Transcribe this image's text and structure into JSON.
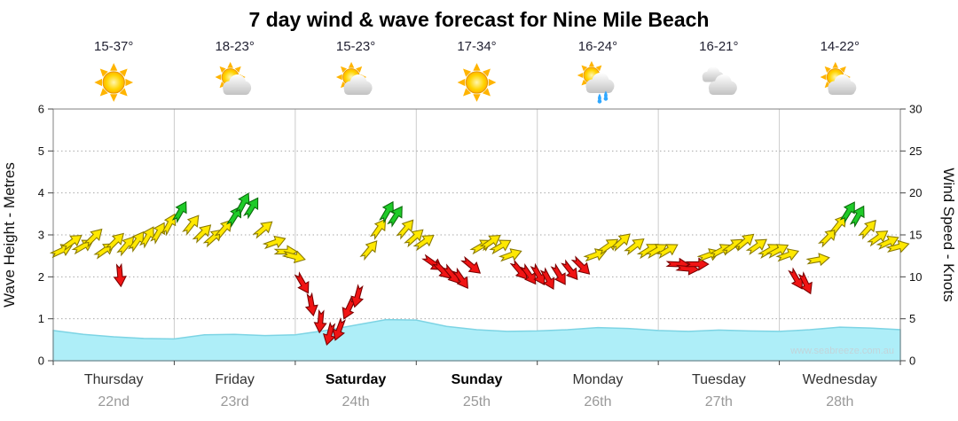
{
  "title": "7 day wind & wave forecast for Nine Mile Beach",
  "watermark": "www.seabreeze.com.au",
  "axes": {
    "left_label": "Wave Height - Metres",
    "right_label": "Wind Speed - Knots",
    "left_ticks": [
      0,
      1,
      2,
      3,
      4,
      5,
      6
    ],
    "right_ticks": [
      0,
      5,
      10,
      15,
      20,
      25,
      30
    ]
  },
  "days": [
    {
      "name": "Thursday",
      "date": "22nd",
      "temp": "15-37°",
      "icon": "sunny",
      "bold": false
    },
    {
      "name": "Friday",
      "date": "23rd",
      "temp": "18-23°",
      "icon": "partly-cloudy",
      "bold": false
    },
    {
      "name": "Saturday",
      "date": "24th",
      "temp": "15-23°",
      "icon": "partly-cloudy",
      "bold": true
    },
    {
      "name": "Sunday",
      "date": "25th",
      "temp": "17-34°",
      "icon": "sunny",
      "bold": true
    },
    {
      "name": "Monday",
      "date": "26th",
      "temp": "16-24°",
      "icon": "sun-showers",
      "bold": false
    },
    {
      "name": "Tuesday",
      "date": "27th",
      "temp": "16-21°",
      "icon": "cloudy",
      "bold": false
    },
    {
      "name": "Wednesday",
      "date": "28th",
      "temp": "14-22°",
      "icon": "partly-cloudy",
      "bold": false
    }
  ],
  "chart_data": {
    "type": "area",
    "title": "7 day wind & wave forecast for Nine Mile Beach",
    "x_axis": {
      "unit": "days",
      "range": [
        0,
        7
      ],
      "categories": [
        "Thursday",
        "Friday",
        "Saturday",
        "Sunday",
        "Monday",
        "Tuesday",
        "Wednesday"
      ]
    },
    "grid": true,
    "wave_series": {
      "name": "Wave Height",
      "unit": "m",
      "ylim": [
        0,
        6
      ],
      "points": [
        [
          0,
          0.72
        ],
        [
          0.25,
          0.63
        ],
        [
          0.5,
          0.57
        ],
        [
          0.75,
          0.53
        ],
        [
          1,
          0.52
        ],
        [
          1.25,
          0.62
        ],
        [
          1.5,
          0.63
        ],
        [
          1.75,
          0.6
        ],
        [
          2,
          0.62
        ],
        [
          2.25,
          0.72
        ],
        [
          2.5,
          0.85
        ],
        [
          2.75,
          0.98
        ],
        [
          3,
          0.97
        ],
        [
          3.25,
          0.82
        ],
        [
          3.5,
          0.74
        ],
        [
          3.75,
          0.7
        ],
        [
          4,
          0.71
        ],
        [
          4.25,
          0.74
        ],
        [
          4.5,
          0.79
        ],
        [
          4.75,
          0.77
        ],
        [
          5,
          0.72
        ],
        [
          5.25,
          0.7
        ],
        [
          5.5,
          0.73
        ],
        [
          5.75,
          0.71
        ],
        [
          6,
          0.7
        ],
        [
          6.25,
          0.74
        ],
        [
          6.5,
          0.8
        ],
        [
          6.75,
          0.78
        ],
        [
          7,
          0.74
        ]
      ]
    },
    "wind_series": {
      "name": "Wind Speed",
      "unit": "knots",
      "ylim": [
        0,
        30
      ],
      "style": "direction-arrows",
      "color_rule": {
        "red_below_kt": 12,
        "green_from_kt": 17,
        "else": "yellow"
      },
      "arrows": [
        [
          0.05,
          13,
          65
        ],
        [
          0.14,
          14,
          55
        ],
        [
          0.23,
          13.5,
          60
        ],
        [
          0.32,
          14.5,
          45
        ],
        [
          0.41,
          13,
          55
        ],
        [
          0.5,
          14,
          45
        ],
        [
          0.55,
          10.5,
          175
        ],
        [
          0.59,
          13.5,
          40
        ],
        [
          0.68,
          14,
          35
        ],
        [
          0.77,
          14.5,
          30
        ],
        [
          0.86,
          15,
          30
        ],
        [
          0.95,
          16,
          28
        ],
        [
          1.04,
          17.5,
          30
        ],
        [
          1.13,
          16,
          38
        ],
        [
          1.22,
          15,
          45
        ],
        [
          1.31,
          14.5,
          48
        ],
        [
          1.4,
          15.5,
          40
        ],
        [
          1.49,
          17,
          32
        ],
        [
          1.56,
          18.5,
          28
        ],
        [
          1.63,
          18,
          32
        ],
        [
          1.72,
          15.5,
          50
        ],
        [
          1.81,
          14,
          70
        ],
        [
          1.9,
          13,
          90
        ],
        [
          1.97,
          12.5,
          105
        ],
        [
          2.05,
          9.5,
          150
        ],
        [
          2.13,
          7,
          170
        ],
        [
          2.21,
          5,
          185
        ],
        [
          2.29,
          3.5,
          195
        ],
        [
          2.37,
          4,
          200
        ],
        [
          2.45,
          6.5,
          205
        ],
        [
          2.52,
          8,
          195
        ],
        [
          2.6,
          13,
          40
        ],
        [
          2.68,
          15.5,
          35
        ],
        [
          2.75,
          17.5,
          30
        ],
        [
          2.82,
          17,
          33
        ],
        [
          2.9,
          15.5,
          40
        ],
        [
          2.97,
          14.5,
          48
        ],
        [
          3.05,
          14,
          55
        ],
        [
          3.12,
          11.8,
          125
        ],
        [
          3.2,
          11,
          135
        ],
        [
          3.28,
          10.5,
          140
        ],
        [
          3.36,
          10,
          145
        ],
        [
          3.44,
          11.5,
          130
        ],
        [
          3.52,
          13.5,
          60
        ],
        [
          3.6,
          14,
          55
        ],
        [
          3.68,
          13.5,
          60
        ],
        [
          3.76,
          12.5,
          70
        ],
        [
          3.84,
          11,
          140
        ],
        [
          3.92,
          10.5,
          145
        ],
        [
          4.0,
          10.5,
          150
        ],
        [
          4.08,
          10,
          152
        ],
        [
          4.17,
          10.5,
          148
        ],
        [
          4.26,
          11,
          142
        ],
        [
          4.35,
          11.5,
          135
        ],
        [
          4.46,
          12.5,
          70
        ],
        [
          4.57,
          13.5,
          55
        ],
        [
          4.68,
          14,
          48
        ],
        [
          4.79,
          13.5,
          52
        ],
        [
          4.9,
          13,
          58
        ],
        [
          4.97,
          13,
          60
        ],
        [
          5.06,
          13,
          60
        ],
        [
          5.14,
          11.5,
          92
        ],
        [
          5.22,
          11,
          95
        ],
        [
          5.3,
          11.5,
          90
        ],
        [
          5.4,
          12.5,
          70
        ],
        [
          5.5,
          13,
          62
        ],
        [
          5.6,
          13.5,
          55
        ],
        [
          5.7,
          14,
          50
        ],
        [
          5.8,
          13.5,
          55
        ],
        [
          5.9,
          13,
          60
        ],
        [
          5.97,
          13,
          62
        ],
        [
          6.05,
          12.5,
          70
        ],
        [
          6.13,
          10,
          150
        ],
        [
          6.21,
          9.5,
          155
        ],
        [
          6.3,
          12,
          80
        ],
        [
          6.39,
          14.5,
          45
        ],
        [
          6.48,
          16,
          38
        ],
        [
          6.56,
          17.5,
          32
        ],
        [
          6.64,
          17,
          30
        ],
        [
          6.72,
          15.5,
          42
        ],
        [
          6.8,
          14.5,
          55
        ],
        [
          6.88,
          14,
          65
        ],
        [
          6.96,
          13.5,
          75
        ]
      ]
    },
    "colors": {
      "wave_fill": "#aeeef8",
      "wave_edge": "#7dd4e4",
      "arrow_yellow": "#ffe800",
      "arrow_red": "#f01414",
      "arrow_green": "#1ecb28"
    }
  }
}
